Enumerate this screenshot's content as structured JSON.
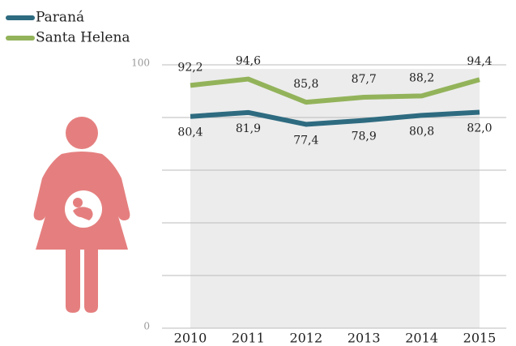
{
  "chart_data": {
    "type": "line",
    "categories": [
      "2010",
      "2011",
      "2012",
      "2013",
      "2014",
      "2015"
    ],
    "series": [
      {
        "name": "Paraná",
        "color": "#2e6b80",
        "values": [
          80.4,
          81.9,
          77.4,
          78.9,
          80.8,
          82.0
        ],
        "value_labels": [
          "80,4",
          "81,9",
          "77,4",
          "78,9",
          "80,8",
          "82,0"
        ]
      },
      {
        "name": "Santa Helena",
        "color": "#93b35a",
        "values": [
          92.2,
          94.6,
          85.8,
          87.7,
          88.2,
          94.4
        ],
        "value_labels": [
          "92,2",
          "94,6",
          "85,8",
          "87,7",
          "88,2",
          "94,4"
        ]
      }
    ],
    "ylim": [
      0,
      100
    ],
    "yticks": [
      0,
      100
    ],
    "ygrid": [
      20,
      40,
      60,
      80
    ],
    "grid": true,
    "legend": "top-left"
  }
}
